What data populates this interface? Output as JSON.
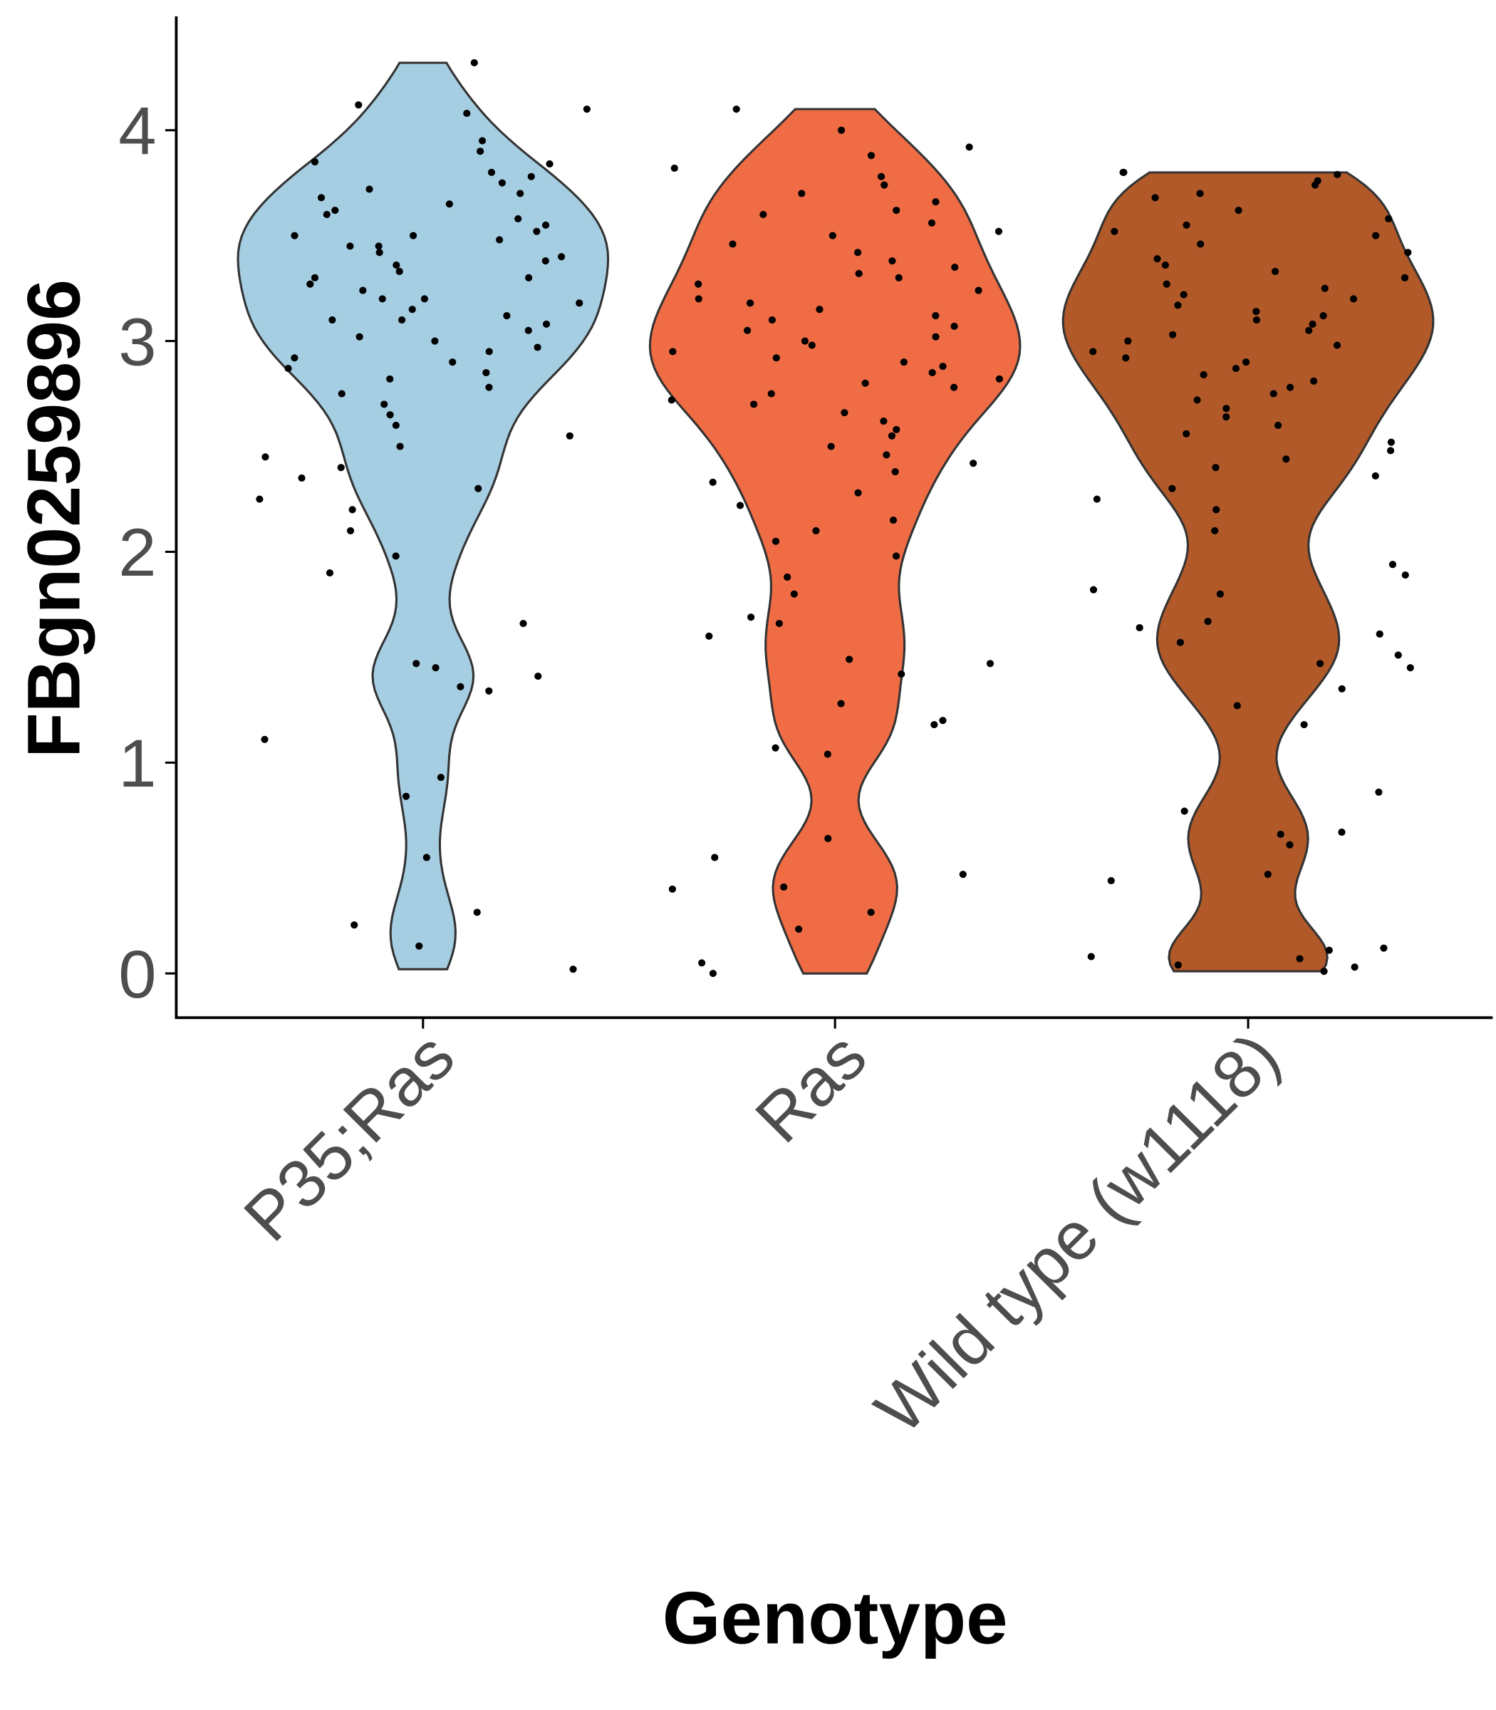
{
  "chart_data": {
    "type": "violin",
    "x_label": "Genotype",
    "y_label": "FBgn0259896",
    "categories": [
      "P35;Ras",
      "Ras",
      "Wild type (w1118)"
    ],
    "colors": [
      "#a6cee3",
      "#f06c45",
      "#b15928"
    ],
    "ylim": [
      -0.21,
      4.54
    ],
    "yticks": [
      0,
      1,
      2,
      3,
      4
    ],
    "values": [
      [
        4.32,
        4.12,
        4.08,
        4.1,
        3.95,
        3.9,
        3.85,
        3.84,
        3.8,
        3.78,
        3.75,
        3.72,
        3.7,
        3.68,
        3.65,
        3.62,
        3.6,
        3.58,
        3.55,
        3.52,
        3.5,
        3.5,
        3.48,
        3.45,
        3.45,
        3.42,
        3.4,
        3.38,
        3.36,
        3.33,
        3.3,
        3.3,
        3.27,
        3.24,
        3.2,
        3.2,
        3.18,
        3.15,
        3.12,
        3.1,
        3.1,
        3.08,
        3.05,
        3.02,
        3.0,
        2.97,
        2.95,
        2.92,
        2.9,
        2.87,
        2.85,
        2.82,
        2.78,
        2.75,
        2.7,
        2.65,
        2.6,
        2.55,
        2.5,
        2.45,
        2.4,
        2.35,
        2.3,
        2.25,
        2.2,
        2.1,
        1.98,
        1.9,
        1.66,
        1.47,
        1.45,
        1.41,
        1.36,
        1.34,
        1.11,
        0.93,
        0.84,
        0.55,
        0.29,
        0.23,
        0.13,
        0.02
      ],
      [
        4.1,
        4.0,
        3.92,
        3.88,
        3.82,
        3.78,
        3.74,
        3.7,
        3.66,
        3.62,
        3.6,
        3.56,
        3.52,
        3.5,
        3.46,
        3.42,
        3.38,
        3.35,
        3.32,
        3.3,
        3.27,
        3.24,
        3.2,
        3.18,
        3.15,
        3.12,
        3.1,
        3.07,
        3.05,
        3.02,
        3.0,
        2.98,
        2.95,
        2.92,
        2.9,
        2.88,
        2.85,
        2.82,
        2.8,
        2.78,
        2.75,
        2.72,
        2.7,
        2.66,
        2.62,
        2.58,
        2.55,
        2.5,
        2.46,
        2.42,
        2.38,
        2.33,
        2.28,
        2.22,
        2.15,
        2.1,
        2.05,
        1.98,
        1.88,
        1.8,
        1.69,
        1.66,
        1.6,
        1.49,
        1.47,
        1.42,
        1.28,
        1.2,
        1.18,
        1.07,
        1.04,
        0.64,
        0.55,
        0.47,
        0.41,
        0.4,
        0.29,
        0.21,
        0.05,
        0.0
      ],
      [
        3.8,
        3.8,
        3.79,
        3.76,
        3.74,
        3.7,
        3.68,
        3.62,
        3.58,
        3.55,
        3.52,
        3.5,
        3.46,
        3.42,
        3.39,
        3.36,
        3.33,
        3.3,
        3.27,
        3.25,
        3.22,
        3.2,
        3.17,
        3.14,
        3.12,
        3.1,
        3.08,
        3.05,
        3.03,
        3.0,
        2.98,
        2.95,
        2.92,
        2.9,
        2.87,
        2.84,
        2.81,
        2.78,
        2.75,
        2.72,
        2.68,
        2.64,
        2.6,
        2.56,
        2.52,
        2.48,
        2.44,
        2.4,
        2.36,
        2.3,
        2.25,
        2.2,
        2.1,
        1.94,
        1.89,
        1.82,
        1.8,
        1.67,
        1.64,
        1.61,
        1.57,
        1.51,
        1.47,
        1.45,
        1.35,
        1.27,
        1.18,
        0.86,
        0.77,
        0.67,
        0.66,
        0.61,
        0.47,
        0.44,
        0.12,
        0.11,
        0.08,
        0.07,
        0.04,
        0.03,
        0.01
      ]
    ]
  }
}
